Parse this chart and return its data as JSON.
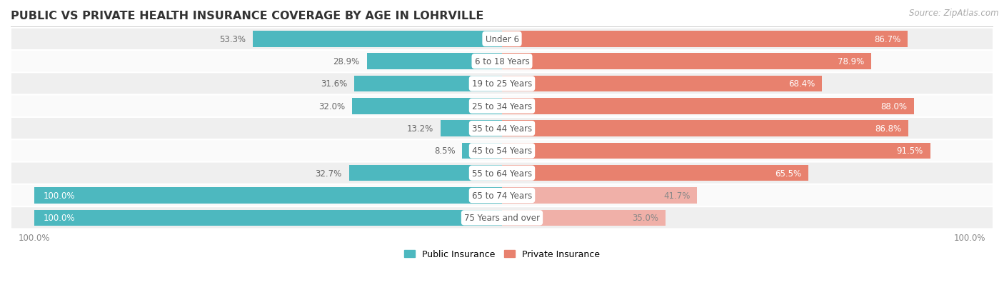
{
  "title": "PUBLIC VS PRIVATE HEALTH INSURANCE COVERAGE BY AGE IN LOHRVILLE",
  "source": "Source: ZipAtlas.com",
  "categories": [
    "Under 6",
    "6 to 18 Years",
    "19 to 25 Years",
    "25 to 34 Years",
    "35 to 44 Years",
    "45 to 54 Years",
    "55 to 64 Years",
    "65 to 74 Years",
    "75 Years and over"
  ],
  "public_values": [
    53.3,
    28.9,
    31.6,
    32.0,
    13.2,
    8.5,
    32.7,
    100.0,
    100.0
  ],
  "private_values": [
    86.7,
    78.9,
    68.4,
    88.0,
    86.8,
    91.5,
    65.5,
    41.7,
    35.0
  ],
  "public_color": "#4db8bf",
  "private_color": "#e8816e",
  "private_color_light": "#f0b0a8",
  "row_bg_even": "#efefef",
  "row_bg_odd": "#fafafa",
  "bar_height": 0.72,
  "legend_labels": [
    "Public Insurance",
    "Private Insurance"
  ],
  "title_fontsize": 11.5,
  "value_fontsize": 8.5,
  "cat_fontsize": 8.5,
  "source_fontsize": 8.5
}
